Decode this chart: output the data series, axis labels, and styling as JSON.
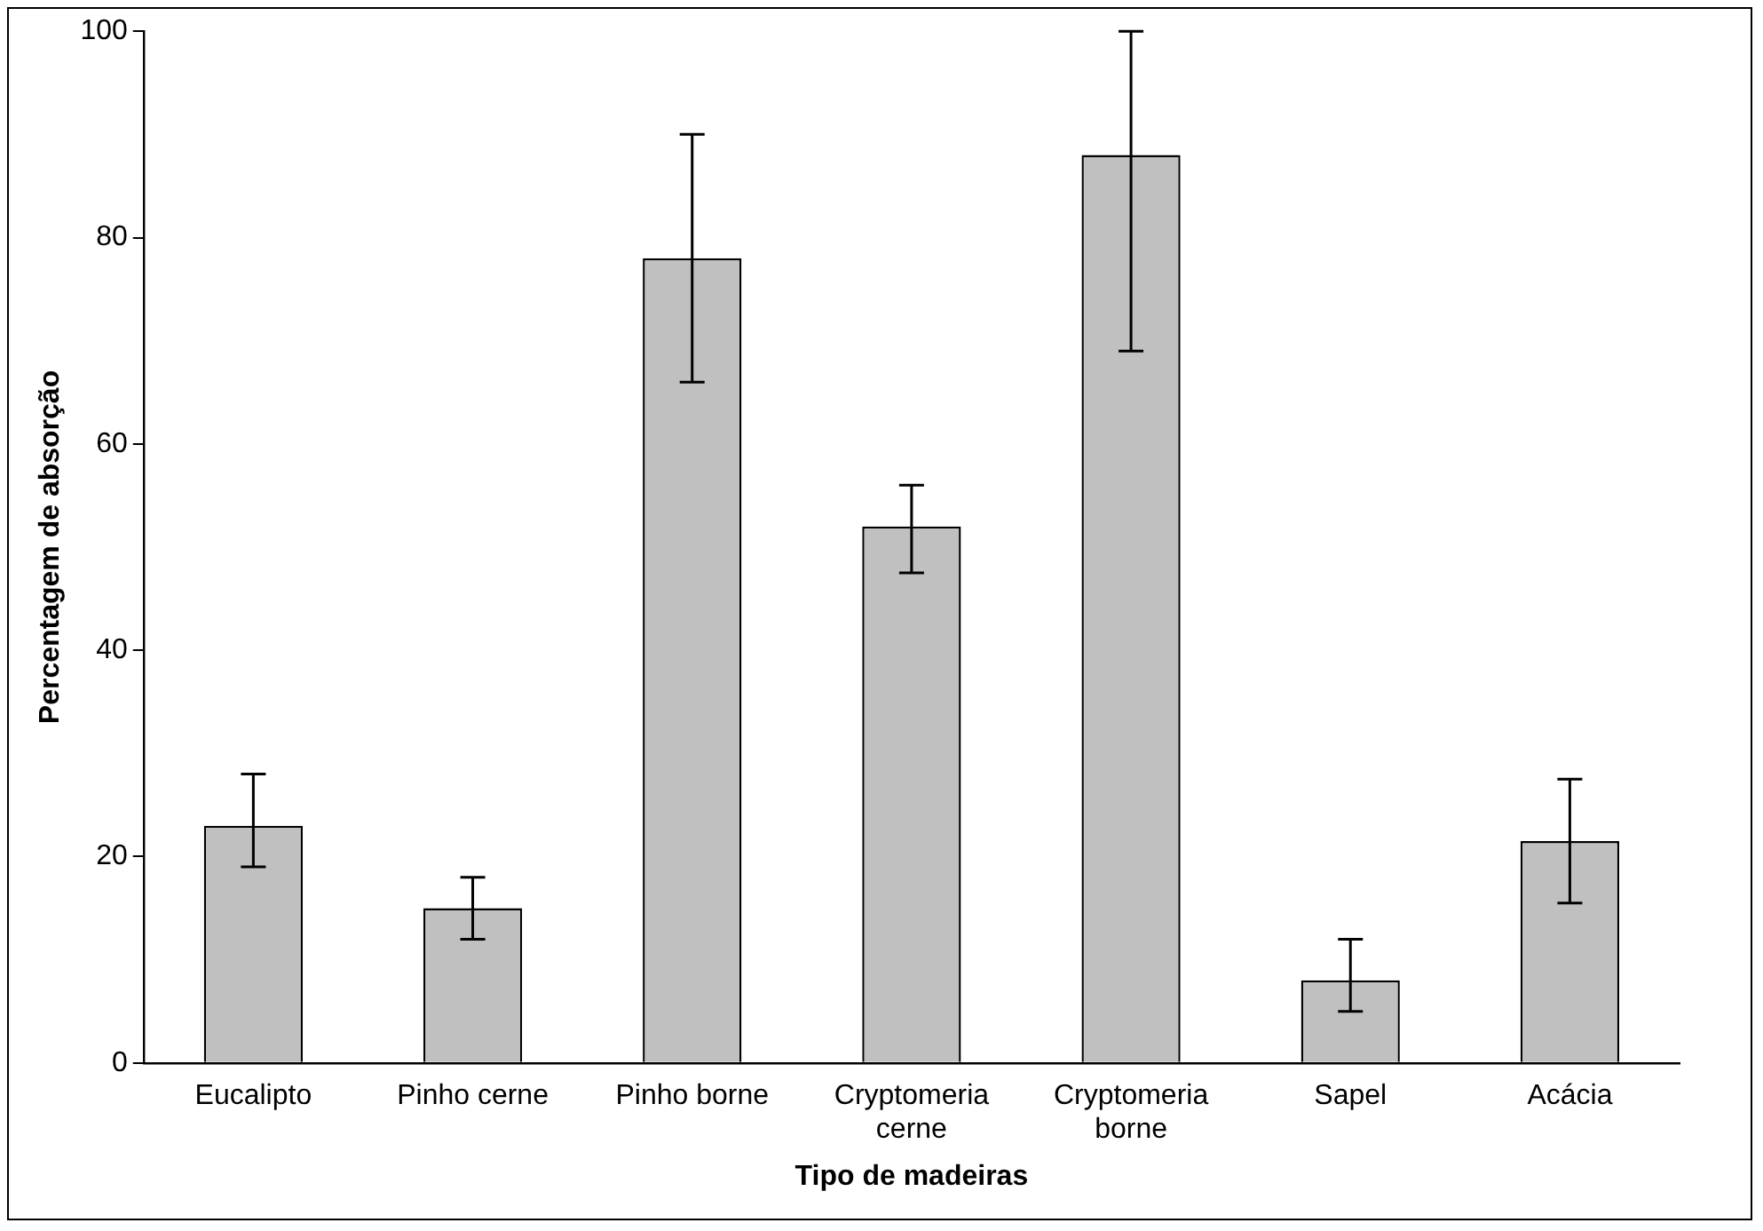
{
  "chart_data": {
    "type": "bar",
    "xlabel": "Tipo de madeiras",
    "ylabel": "Percentagem de absorção",
    "categories": [
      "Eucalipto",
      "Pinho cerne",
      "Pinho borne",
      "Cryptomeria cerne",
      "Cryptomeria borne",
      "Sapel",
      "Acácia"
    ],
    "values": [
      23,
      15,
      78,
      52,
      88,
      8,
      21.5
    ],
    "errors": [
      [
        19,
        28
      ],
      [
        12,
        18
      ],
      [
        66,
        90
      ],
      [
        47.5,
        56
      ],
      [
        69,
        100
      ],
      [
        5,
        12
      ],
      [
        15.5,
        27.5
      ]
    ],
    "color": "#c0c0c0",
    "ylim": [
      0,
      100
    ],
    "yticks": [
      0,
      20,
      40,
      60,
      80,
      100
    ],
    "grid": false,
    "legend": false
  }
}
